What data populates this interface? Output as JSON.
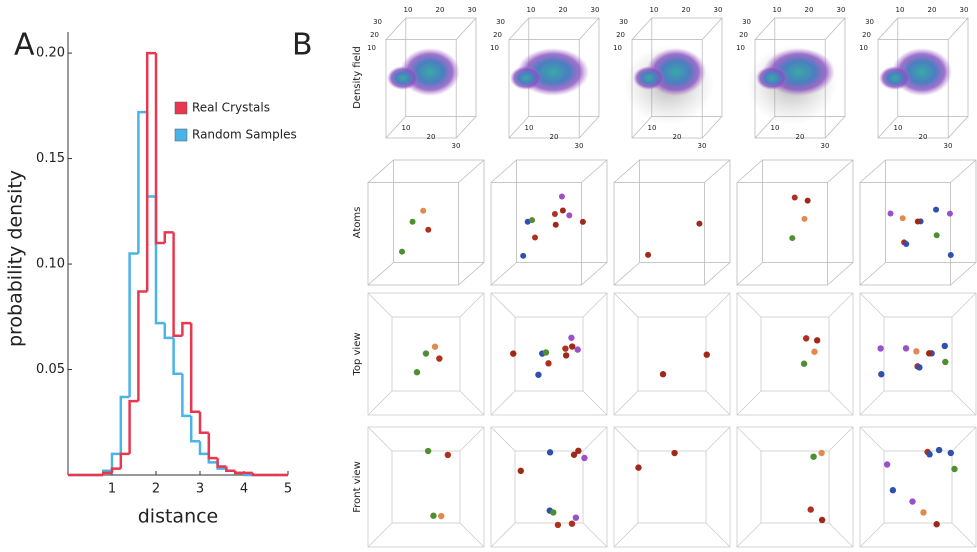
{
  "chart_data": {
    "type": "histogram",
    "xlabel": "distance",
    "ylabel": "probability density",
    "bins": [
      0,
      0.2,
      0.4,
      0.6,
      0.8,
      1.0,
      1.2,
      1.4,
      1.6,
      1.8,
      2.0,
      2.2,
      2.4,
      2.6,
      2.8,
      3.0,
      3.2,
      3.4,
      3.6,
      3.8,
      4.0,
      4.2,
      4.4,
      4.6,
      4.8,
      5.0
    ],
    "series": [
      {
        "name": "Real Crystals",
        "color": "#e8384f",
        "values": [
          0,
          0,
          0,
          0,
          0.001,
          0.003,
          0.01,
          0.035,
          0.087,
          0.2,
          0.11,
          0.115,
          0.066,
          0.072,
          0.03,
          0.02,
          0.008,
          0.004,
          0.002,
          0.001,
          0.001,
          0,
          0,
          0,
          0
        ]
      },
      {
        "name": "Random Samples",
        "color": "#4ab3e8",
        "values": [
          0,
          0,
          0,
          0,
          0.002,
          0.01,
          0.037,
          0.105,
          0.172,
          0.132,
          0.072,
          0.065,
          0.048,
          0.028,
          0.016,
          0.01,
          0.006,
          0.003,
          0.002,
          0.001,
          0,
          0,
          0,
          0,
          0
        ]
      }
    ],
    "xlim": [
      0,
      5
    ],
    "ylim": [
      0,
      0.21
    ],
    "xticks": [
      1,
      2,
      3,
      4,
      5
    ],
    "yticks": [
      0.05,
      {
        "value": 0.1,
        "label": "0.10"
      },
      0.15,
      {
        "value": 0.2,
        "label": "0.20"
      }
    ],
    "legend": "upper right"
  },
  "panel_a_label": "A",
  "panel_b": {
    "label": "B",
    "row_labels": [
      "Density field",
      "Atoms",
      "Top view",
      "Front view"
    ],
    "cube_ticks": [
      10,
      20,
      30
    ]
  }
}
